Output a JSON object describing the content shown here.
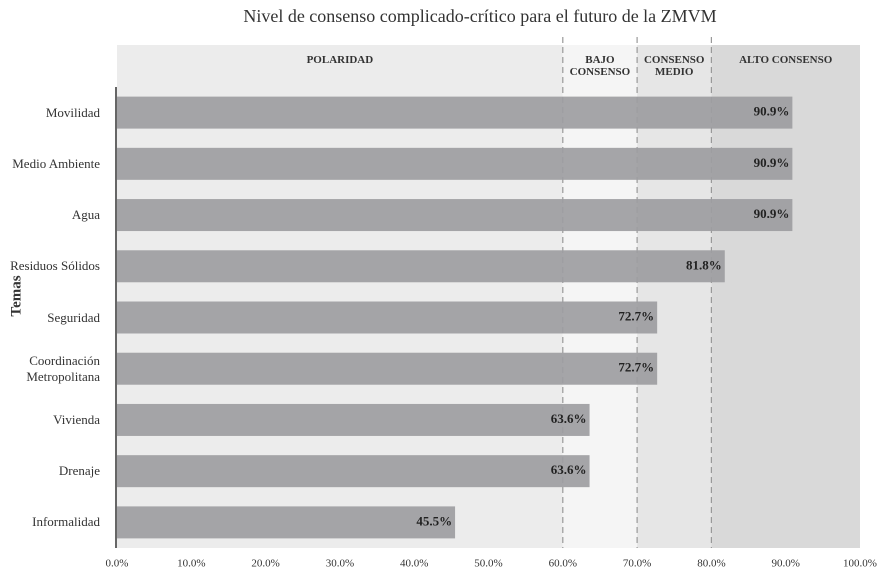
{
  "chart_data": {
    "type": "bar",
    "orientation": "horizontal",
    "title": "Nivel de consenso complicado-crítico para el futuro de la ZMVM",
    "ylabel": "Temas",
    "categories": [
      "Movilidad",
      "Medio Ambiente",
      "Agua",
      "Residuos Sólidos",
      "Seguridad",
      "Coordinación Metropolitana",
      "Vivienda",
      "Drenaje",
      "Informalidad"
    ],
    "values": [
      90.9,
      90.9,
      90.9,
      81.8,
      72.7,
      72.7,
      63.6,
      63.6,
      45.5
    ],
    "value_labels": [
      "90.9%",
      "90.9%",
      "90.9%",
      "81.8%",
      "72.7%",
      "72.7%",
      "63.6%",
      "63.6%",
      "45.5%"
    ],
    "color": "#9d9da1",
    "xlim": [
      0,
      100
    ],
    "xticks": [
      {
        "value": 0,
        "label": "0.0%"
      },
      {
        "value": 10,
        "label": "10.0%"
      },
      {
        "value": 20,
        "label": "20.0%"
      },
      {
        "value": 30,
        "label": "30.0%"
      },
      {
        "value": 40,
        "label": "40.0%"
      },
      {
        "value": 50,
        "label": "50.0%"
      },
      {
        "value": 60,
        "label": "60.0%"
      },
      {
        "value": 70,
        "label": "70.0%"
      },
      {
        "value": 80,
        "label": "80.0%"
      },
      {
        "value": 90,
        "label": "90.0%"
      },
      {
        "value": 100,
        "label": "100.0%"
      }
    ],
    "bands": [
      {
        "label": "POLARIDAD",
        "from": 0,
        "to": 60,
        "color": "#ececec"
      },
      {
        "label": "BAJO CONSENSO",
        "from": 60,
        "to": 70,
        "color": "#f5f5f5"
      },
      {
        "label": "CONSENSO MEDIO",
        "from": 70,
        "to": 80,
        "color": "#e6e6e6"
      },
      {
        "label": "ALTO CONSENSO",
        "from": 80,
        "to": 100,
        "color": "#d9d9d9"
      }
    ]
  }
}
